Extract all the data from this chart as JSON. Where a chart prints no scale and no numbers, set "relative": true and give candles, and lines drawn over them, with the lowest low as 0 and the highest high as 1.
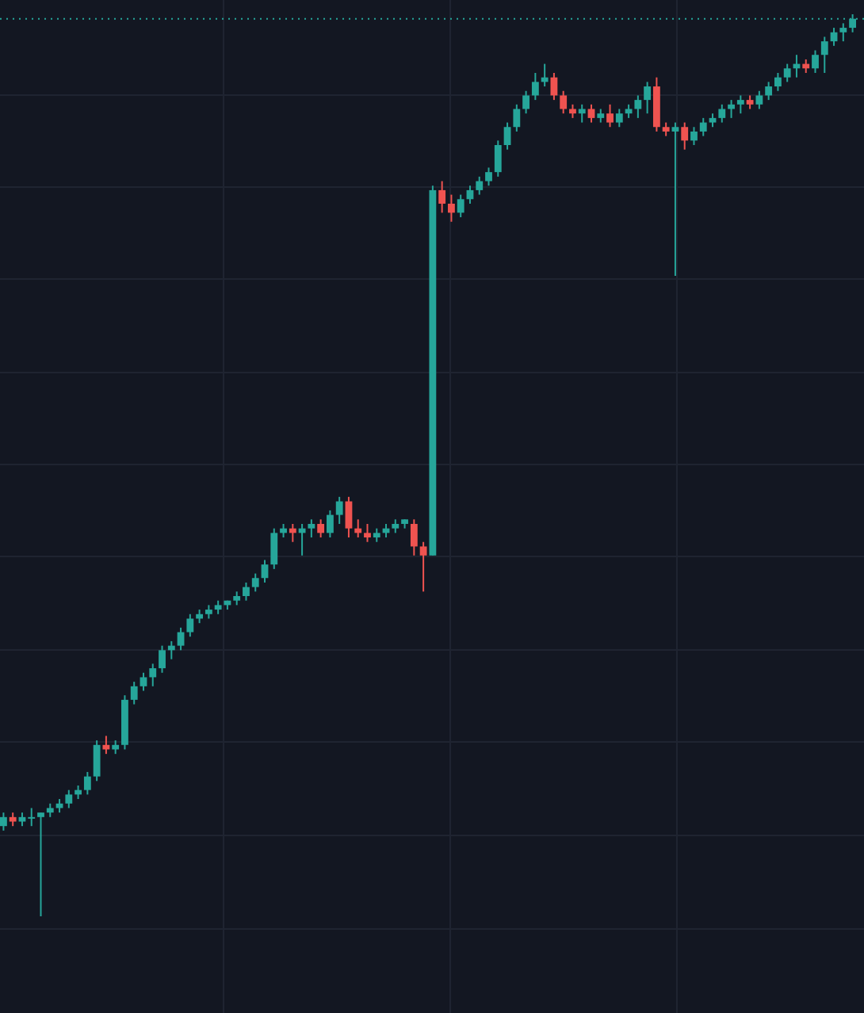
{
  "chart_data": {
    "type": "candlestick",
    "relative": true,
    "grid": true,
    "colors": [
      "#26a69a",
      "#ef5350",
      "#26a69a",
      "#26a69a",
      "#26a69a",
      "#26a69a",
      "#26a69a",
      "#26a69a",
      "#26a69a",
      "#26a69a",
      "#26a69a",
      "#ef5350",
      "#26a69a",
      "#26a69a",
      "#26a69a",
      "#26a69a",
      "#26a69a",
      "#26a69a",
      "#26a69a",
      "#26a69a",
      "#26a69a",
      "#26a69a",
      "#26a69a",
      "#26a69a",
      "#26a69a",
      "#26a69a",
      "#26a69a",
      "#26a69a",
      "#26a69a",
      "#26a69a",
      "#26a69a",
      "#ef5350",
      "#26a69a",
      "#26a69a",
      "#ef5350",
      "#26a69a",
      "#26a69a",
      "#ef5350",
      "#ef5350",
      "#ef5350",
      "#26a69a",
      "#26a69a",
      "#26a69a",
      "#26a69a",
      "#ef5350",
      "#ef5350",
      "#26a69a",
      "#ef5350",
      "#ef5350",
      "#26a69a",
      "#26a69a",
      "#26a69a",
      "#26a69a",
      "#26a69a",
      "#26a69a",
      "#26a69a",
      "#26a69a",
      "#26a69a",
      "#26a69a",
      "#ef5350",
      "#ef5350",
      "#ef5350",
      "#26a69a",
      "#ef5350",
      "#26a69a",
      "#ef5350",
      "#26a69a",
      "#26a69a",
      "#26a69a",
      "#26a69a",
      "#ef5350",
      "#ef5350",
      "#26a69a",
      "#ef5350",
      "#26a69a",
      "#26a69a",
      "#26a69a",
      "#26a69a",
      "#26a69a",
      "#26a69a",
      "#ef5350",
      "#26a69a",
      "#26a69a",
      "#26a69a",
      "#26a69a",
      "#26a69a",
      "#ef5350",
      "#26a69a",
      "#26a69a",
      "#26a69a",
      "#26a69a",
      "#26a69a"
    ],
    "categories": [
      null,
      null,
      null,
      null,
      null,
      null,
      null,
      null,
      null,
      null,
      null,
      null,
      null,
      null,
      null,
      null,
      null,
      null,
      null,
      null,
      null,
      null,
      null,
      null,
      null,
      null,
      null,
      null,
      null,
      null,
      null,
      null,
      null,
      null,
      null,
      null,
      null,
      null,
      null,
      null,
      null,
      null,
      null,
      null,
      null,
      null,
      null,
      null,
      null,
      null,
      null,
      null,
      null,
      null,
      null,
      null,
      null,
      null,
      null,
      null,
      null,
      null,
      null,
      null,
      null,
      null,
      null,
      null,
      null,
      null,
      null,
      null,
      null,
      null,
      null,
      null,
      null,
      null,
      null,
      null,
      null,
      null,
      null,
      null,
      null,
      null,
      null,
      null,
      null,
      null,
      null,
      null
    ],
    "ohlc": [
      [
        0.1,
        0.115,
        0.095,
        0.11
      ],
      [
        0.11,
        0.115,
        0.1,
        0.105
      ],
      [
        0.105,
        0.115,
        0.1,
        0.11
      ],
      [
        0.11,
        0.12,
        0.1,
        0.11
      ],
      [
        0.11,
        0.115,
        0.0,
        0.115
      ],
      [
        0.115,
        0.125,
        0.11,
        0.12
      ],
      [
        0.12,
        0.13,
        0.115,
        0.125
      ],
      [
        0.125,
        0.14,
        0.12,
        0.135
      ],
      [
        0.135,
        0.145,
        0.13,
        0.14
      ],
      [
        0.14,
        0.16,
        0.135,
        0.155
      ],
      [
        0.155,
        0.195,
        0.15,
        0.19
      ],
      [
        0.19,
        0.2,
        0.18,
        0.185
      ],
      [
        0.185,
        0.195,
        0.18,
        0.19
      ],
      [
        0.19,
        0.245,
        0.185,
        0.24
      ],
      [
        0.24,
        0.26,
        0.235,
        0.255
      ],
      [
        0.255,
        0.27,
        0.25,
        0.265
      ],
      [
        0.265,
        0.28,
        0.255,
        0.275
      ],
      [
        0.275,
        0.3,
        0.27,
        0.295
      ],
      [
        0.295,
        0.305,
        0.285,
        0.3
      ],
      [
        0.3,
        0.32,
        0.295,
        0.315
      ],
      [
        0.315,
        0.335,
        0.31,
        0.33
      ],
      [
        0.33,
        0.34,
        0.325,
        0.335
      ],
      [
        0.335,
        0.345,
        0.33,
        0.34
      ],
      [
        0.34,
        0.35,
        0.335,
        0.345
      ],
      [
        0.345,
        0.35,
        0.34,
        0.35
      ],
      [
        0.35,
        0.36,
        0.345,
        0.355
      ],
      [
        0.355,
        0.37,
        0.35,
        0.365
      ],
      [
        0.365,
        0.38,
        0.36,
        0.375
      ],
      [
        0.375,
        0.395,
        0.37,
        0.39
      ],
      [
        0.39,
        0.43,
        0.385,
        0.425
      ],
      [
        0.425,
        0.435,
        0.42,
        0.43
      ],
      [
        0.43,
        0.435,
        0.415,
        0.425
      ],
      [
        0.425,
        0.435,
        0.4,
        0.43
      ],
      [
        0.43,
        0.44,
        0.42,
        0.435
      ],
      [
        0.435,
        0.44,
        0.42,
        0.425
      ],
      [
        0.425,
        0.45,
        0.42,
        0.445
      ],
      [
        0.445,
        0.465,
        0.435,
        0.46
      ],
      [
        0.46,
        0.465,
        0.42,
        0.43
      ],
      [
        0.43,
        0.44,
        0.42,
        0.425
      ],
      [
        0.425,
        0.435,
        0.415,
        0.42
      ],
      [
        0.42,
        0.43,
        0.415,
        0.425
      ],
      [
        0.425,
        0.435,
        0.42,
        0.43
      ],
      [
        0.43,
        0.44,
        0.425,
        0.435
      ],
      [
        0.435,
        0.44,
        0.43,
        0.44
      ],
      [
        0.435,
        0.44,
        0.4,
        0.41
      ],
      [
        0.41,
        0.415,
        0.36,
        0.4
      ],
      [
        0.4,
        0.81,
        0.4,
        0.805
      ],
      [
        0.805,
        0.815,
        0.78,
        0.79
      ],
      [
        0.79,
        0.8,
        0.77,
        0.78
      ],
      [
        0.78,
        0.8,
        0.775,
        0.795
      ],
      [
        0.795,
        0.81,
        0.79,
        0.805
      ],
      [
        0.805,
        0.82,
        0.8,
        0.815
      ],
      [
        0.815,
        0.83,
        0.81,
        0.825
      ],
      [
        0.825,
        0.86,
        0.82,
        0.855
      ],
      [
        0.855,
        0.88,
        0.85,
        0.875
      ],
      [
        0.875,
        0.9,
        0.87,
        0.895
      ],
      [
        0.895,
        0.915,
        0.89,
        0.91
      ],
      [
        0.91,
        0.935,
        0.905,
        0.925
      ],
      [
        0.925,
        0.945,
        0.92,
        0.93
      ],
      [
        0.93,
        0.935,
        0.905,
        0.91
      ],
      [
        0.91,
        0.915,
        0.89,
        0.895
      ],
      [
        0.895,
        0.9,
        0.885,
        0.89
      ],
      [
        0.89,
        0.9,
        0.88,
        0.895
      ],
      [
        0.895,
        0.9,
        0.88,
        0.885
      ],
      [
        0.885,
        0.895,
        0.88,
        0.89
      ],
      [
        0.89,
        0.9,
        0.875,
        0.88
      ],
      [
        0.88,
        0.895,
        0.875,
        0.89
      ],
      [
        0.89,
        0.9,
        0.885,
        0.895
      ],
      [
        0.895,
        0.91,
        0.885,
        0.905
      ],
      [
        0.905,
        0.925,
        0.89,
        0.92
      ],
      [
        0.92,
        0.93,
        0.87,
        0.875
      ],
      [
        0.875,
        0.88,
        0.865,
        0.87
      ],
      [
        0.87,
        0.88,
        0.71,
        0.875
      ],
      [
        0.875,
        0.88,
        0.85,
        0.86
      ],
      [
        0.86,
        0.875,
        0.855,
        0.87
      ],
      [
        0.87,
        0.885,
        0.865,
        0.88
      ],
      [
        0.88,
        0.89,
        0.875,
        0.885
      ],
      [
        0.885,
        0.9,
        0.88,
        0.895
      ],
      [
        0.895,
        0.905,
        0.885,
        0.9
      ],
      [
        0.9,
        0.91,
        0.89,
        0.905
      ],
      [
        0.905,
        0.91,
        0.895,
        0.9
      ],
      [
        0.9,
        0.915,
        0.895,
        0.91
      ],
      [
        0.91,
        0.925,
        0.905,
        0.92
      ],
      [
        0.92,
        0.935,
        0.915,
        0.93
      ],
      [
        0.93,
        0.945,
        0.925,
        0.94
      ],
      [
        0.94,
        0.955,
        0.93,
        0.945
      ],
      [
        0.945,
        0.95,
        0.935,
        0.94
      ],
      [
        0.94,
        0.96,
        0.935,
        0.955
      ],
      [
        0.955,
        0.975,
        0.935,
        0.97
      ],
      [
        0.97,
        0.985,
        0.965,
        0.98
      ],
      [
        0.98,
        0.99,
        0.97,
        0.985
      ],
      [
        0.985,
        1.0,
        0.98,
        0.995
      ]
    ],
    "ref_lines": [
      {
        "axis": "y",
        "value": 0.995,
        "color": "#26a69a",
        "line_style": "dotted"
      }
    ]
  }
}
